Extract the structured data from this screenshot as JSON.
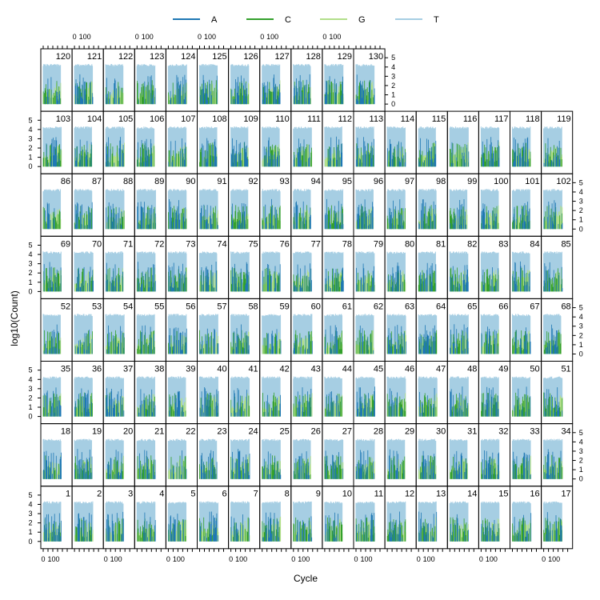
{
  "chart_data": {
    "type": "line",
    "title": "",
    "xlabel": "Cycle",
    "ylabel": "log10(Count)",
    "x_tick_labels": [
      "0",
      "100"
    ],
    "y_tick_labels": [
      "0",
      "1",
      "2",
      "3",
      "4",
      "5"
    ],
    "ylim": [
      0,
      5
    ],
    "grid": false,
    "legend_position": "top",
    "layout": {
      "columns": 17,
      "rows": 8
    },
    "series": [
      {
        "name": "A",
        "color": "#1f78b4"
      },
      {
        "name": "C",
        "color": "#33a02c"
      },
      {
        "name": "G",
        "color": "#b2df8a"
      },
      {
        "name": "T",
        "color": "#a6cee3"
      }
    ],
    "panels": [
      "1",
      "2",
      "3",
      "4",
      "5",
      "6",
      "7",
      "8",
      "9",
      "10",
      "11",
      "12",
      "13",
      "14",
      "15",
      "16",
      "17",
      "18",
      "19",
      "20",
      "21",
      "22",
      "23",
      "24",
      "25",
      "26",
      "27",
      "28",
      "29",
      "30",
      "31",
      "32",
      "33",
      "34",
      "35",
      "36",
      "37",
      "38",
      "39",
      "40",
      "41",
      "42",
      "43",
      "44",
      "45",
      "46",
      "47",
      "48",
      "49",
      "50",
      "51",
      "52",
      "53",
      "54",
      "55",
      "56",
      "57",
      "58",
      "59",
      "60",
      "61",
      "62",
      "63",
      "64",
      "65",
      "66",
      "67",
      "68",
      "69",
      "70",
      "71",
      "72",
      "73",
      "74",
      "75",
      "76",
      "77",
      "78",
      "79",
      "80",
      "81",
      "82",
      "83",
      "84",
      "85",
      "86",
      "87",
      "88",
      "89",
      "90",
      "91",
      "92",
      "93",
      "94",
      "95",
      "96",
      "97",
      "98",
      "99",
      "100",
      "101",
      "102",
      "103",
      "104",
      "105",
      "106",
      "107",
      "108",
      "109",
      "110",
      "111",
      "112",
      "113",
      "114",
      "115",
      "116",
      "117",
      "118",
      "119",
      "120",
      "121",
      "122",
      "123",
      "124",
      "125",
      "126",
      "127",
      "128",
      "129",
      "130"
    ],
    "typical_levels": {
      "T": 4.2,
      "G": 0.6,
      "C": 1.0,
      "A": 1.2
    }
  }
}
